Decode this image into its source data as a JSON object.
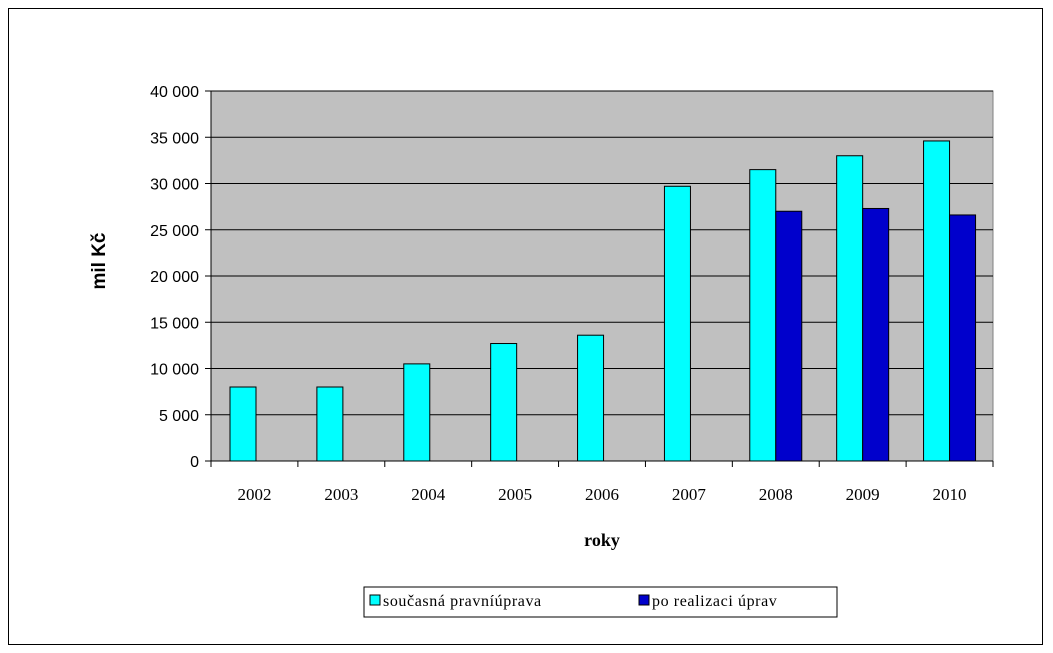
{
  "chart_data": {
    "type": "bar",
    "categories": [
      "2002",
      "2003",
      "2004",
      "2005",
      "2006",
      "2007",
      "2008",
      "2009",
      "2010"
    ],
    "series": [
      {
        "name": "současná pravníúprava",
        "color": "#00ffff",
        "values": [
          8000,
          8000,
          10500,
          12700,
          13600,
          29700,
          31500,
          33000,
          34600
        ]
      },
      {
        "name": "po realizaci úprav",
        "color": "#0000cc",
        "values": [
          null,
          null,
          null,
          null,
          null,
          null,
          27000,
          27300,
          26600
        ]
      }
    ],
    "xlabel": "roky",
    "ylabel": "mil Kč",
    "ylim": [
      0,
      40000
    ],
    "yticks": [
      0,
      5000,
      10000,
      15000,
      20000,
      25000,
      30000,
      35000,
      40000
    ],
    "ytick_labels": [
      "0",
      "5 000",
      "10 000",
      "15 000",
      "20 000",
      "25 000",
      "30 000",
      "35 000",
      "40 000"
    ],
    "grid": true,
    "legend_position": "bottom",
    "plot_background": "#c0c0c0"
  }
}
